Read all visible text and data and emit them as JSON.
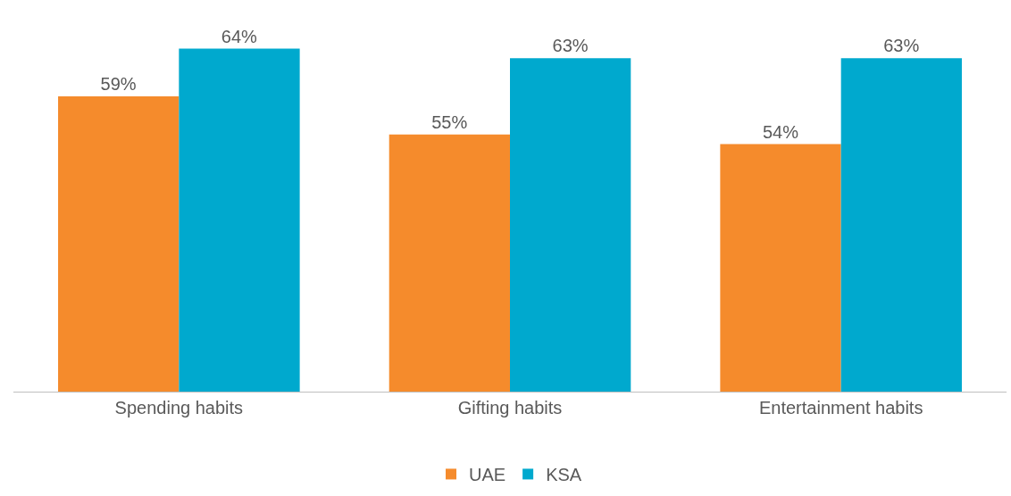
{
  "chart_data": {
    "type": "bar",
    "categories": [
      "Spending habits",
      "Gifting habits",
      "Entertainment habits"
    ],
    "series": [
      {
        "name": "UAE",
        "color": "#f58b2c",
        "values": [
          59,
          55,
          54
        ],
        "value_labels": [
          "59%",
          "55%",
          "54%"
        ]
      },
      {
        "name": "KSA",
        "color": "#00a9ce",
        "values": [
          64,
          63,
          63
        ],
        "value_labels": [
          "64%",
          "63%",
          "63%"
        ]
      }
    ],
    "tick_labels": "x",
    "grid": false,
    "legend": "bottom"
  }
}
